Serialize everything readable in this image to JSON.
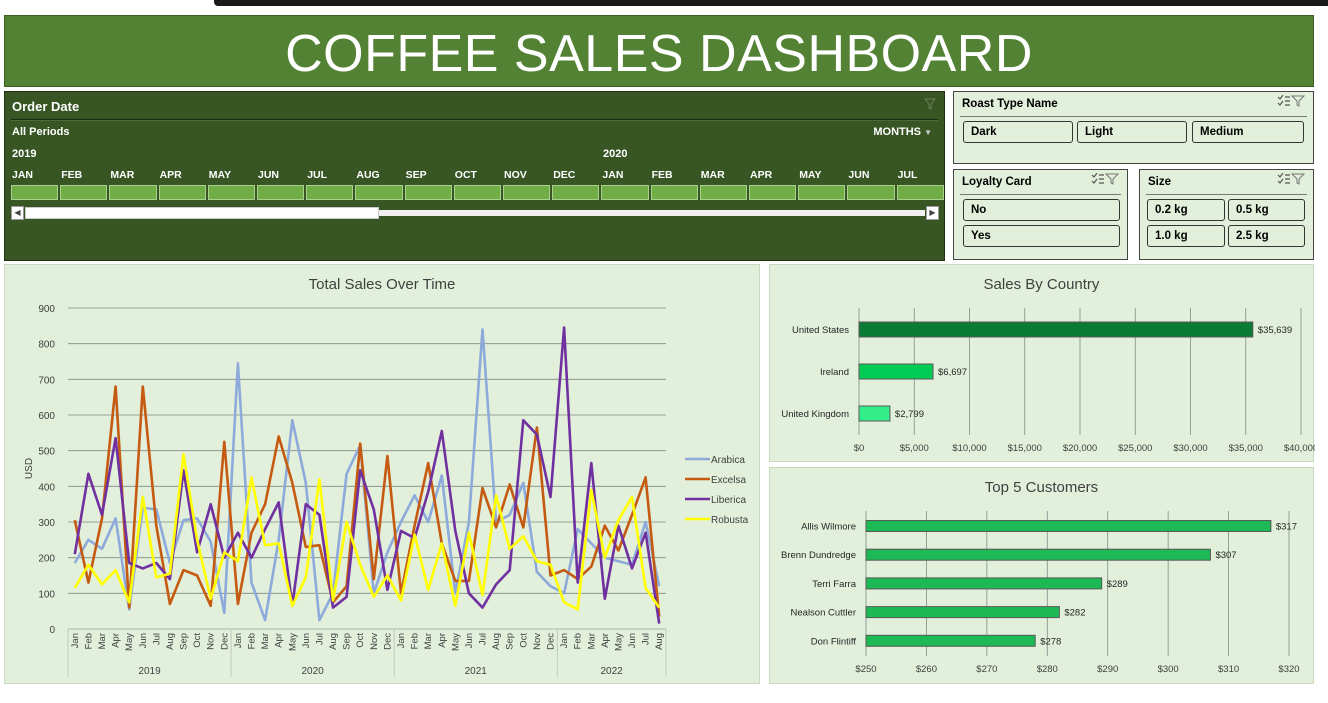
{
  "dashboard": {
    "title": "COFFEE SALES DASHBOARD"
  },
  "timeline": {
    "header": "Order Date",
    "period_label": "All Periods",
    "level_label": "MONTHS",
    "years": [
      {
        "label": "2019",
        "month_index": 0
      },
      {
        "label": "2020",
        "month_index": 12
      }
    ],
    "months": [
      "JAN",
      "FEB",
      "MAR",
      "APR",
      "MAY",
      "JUN",
      "JUL",
      "AUG",
      "SEP",
      "OCT",
      "NOV",
      "DEC",
      "JAN",
      "FEB",
      "MAR",
      "APR",
      "MAY",
      "JUN",
      "JUL"
    ]
  },
  "slicers": {
    "roast": {
      "header": "Roast Type Name",
      "items": [
        "Dark",
        "Light",
        "Medium"
      ]
    },
    "loyalty": {
      "header": "Loyalty Card",
      "items": [
        "No",
        "Yes"
      ]
    },
    "size": {
      "header": "Size",
      "items": [
        "0.2 kg",
        "0.5 kg",
        "1.0 kg",
        "2.5 kg"
      ]
    }
  },
  "icons": {
    "multiselect": "multi-select-icon",
    "clear_filter": "clear-filter-icon",
    "scroll_left": "scroll-left-icon",
    "scroll_right": "scroll-right-icon"
  },
  "colors": {
    "header_green": "#548235",
    "timeline_green": "#375623",
    "panel_bg": "#e2efda",
    "arabica": "#8eaadb",
    "excelsa": "#c55a11",
    "liberica": "#7030a0",
    "robusta": "#ffff00",
    "country_bars": [
      "#0b7a35",
      "#00cc55",
      "#33ee88"
    ],
    "customer_bar": "#1db954"
  },
  "chart_data": [
    {
      "type": "line",
      "title": "Total Sales Over Time",
      "ylabel": "USD",
      "xlabel": "",
      "ylim": [
        0,
        900
      ],
      "yticks": [
        0,
        100,
        200,
        300,
        400,
        500,
        600,
        700,
        800,
        900
      ],
      "grid": true,
      "legend_position": "right",
      "categories": [
        "Jan",
        "Feb",
        "Mar",
        "Apr",
        "May",
        "Jun",
        "Jul",
        "Aug",
        "Sep",
        "Oct",
        "Nov",
        "Dec",
        "Jan",
        "Feb",
        "Mar",
        "Apr",
        "May",
        "Jun",
        "Jul",
        "Aug",
        "Sep",
        "Oct",
        "Nov",
        "Dec",
        "Jan",
        "Feb",
        "Mar",
        "Apr",
        "May",
        "Jun",
        "Jul",
        "Aug",
        "Sep",
        "Oct",
        "Nov",
        "Dec",
        "Jan",
        "Feb",
        "Mar",
        "Apr",
        "May",
        "Jun",
        "Jul",
        "Aug"
      ],
      "year_groups": [
        {
          "label": "2019",
          "count": 12
        },
        {
          "label": "2020",
          "count": 12
        },
        {
          "label": "2021",
          "count": 12
        },
        {
          "label": "2022",
          "count": 8
        }
      ],
      "series": [
        {
          "name": "Arabica",
          "values": [
            185,
            250,
            225,
            310,
            55,
            340,
            335,
            185,
            305,
            310,
            245,
            45,
            745,
            130,
            25,
            250,
            585,
            410,
            25,
            100,
            435,
            515,
            100,
            215,
            300,
            375,
            300,
            430,
            100,
            300,
            840,
            300,
            320,
            410,
            160,
            120,
            100,
            280,
            240,
            200,
            190,
            180,
            300,
            120
          ]
        },
        {
          "name": "Excelsa",
          "values": [
            305,
            130,
            310,
            680,
            60,
            680,
            290,
            70,
            165,
            150,
            65,
            525,
            70,
            270,
            350,
            540,
            410,
            230,
            235,
            75,
            120,
            520,
            140,
            485,
            100,
            290,
            465,
            240,
            135,
            135,
            395,
            285,
            405,
            285,
            565,
            150,
            165,
            140,
            175,
            290,
            220,
            320,
            425,
            35
          ]
        },
        {
          "name": "Liberica",
          "values": [
            210,
            435,
            320,
            535,
            185,
            170,
            185,
            140,
            445,
            215,
            350,
            200,
            270,
            200,
            280,
            355,
            65,
            350,
            320,
            60,
            90,
            445,
            335,
            110,
            275,
            255,
            385,
            555,
            275,
            100,
            60,
            125,
            165,
            585,
            545,
            370,
            845,
            130,
            465,
            85,
            290,
            170,
            270,
            15
          ]
        },
        {
          "name": "Robusta",
          "values": [
            115,
            180,
            125,
            165,
            75,
            370,
            145,
            155,
            490,
            250,
            85,
            215,
            190,
            425,
            235,
            240,
            65,
            145,
            420,
            80,
            300,
            180,
            90,
            150,
            80,
            265,
            110,
            240,
            65,
            270,
            95,
            375,
            225,
            260,
            190,
            180,
            75,
            55,
            390,
            200,
            305,
            370,
            115,
            60
          ]
        }
      ]
    },
    {
      "type": "bar",
      "orientation": "horizontal",
      "title": "Sales By Country",
      "categories": [
        "United States",
        "Ireland",
        "United Kingdom"
      ],
      "values": [
        35639,
        6697,
        2799
      ],
      "data_labels": [
        "$35,639",
        "$6,697",
        "$2,799"
      ],
      "xlim": [
        0,
        40000
      ],
      "xticks": [
        "$0",
        "$5,000",
        "$10,000",
        "$15,000",
        "$20,000",
        "$25,000",
        "$30,000",
        "$35,000",
        "$40,000"
      ],
      "grid": true
    },
    {
      "type": "bar",
      "orientation": "horizontal",
      "title": "Top 5 Customers",
      "categories": [
        "Allis Wilmore",
        "Brenn Dundredge",
        "Terri Farra",
        "Nealson Cuttler",
        "Don Flintiff"
      ],
      "values": [
        317,
        307,
        289,
        282,
        278
      ],
      "data_labels": [
        "$317",
        "$307",
        "$289",
        "$282",
        "$278"
      ],
      "xlim": [
        250,
        320
      ],
      "xticks": [
        "$250",
        "$260",
        "$270",
        "$280",
        "$290",
        "$300",
        "$310",
        "$320"
      ],
      "grid": true
    }
  ]
}
